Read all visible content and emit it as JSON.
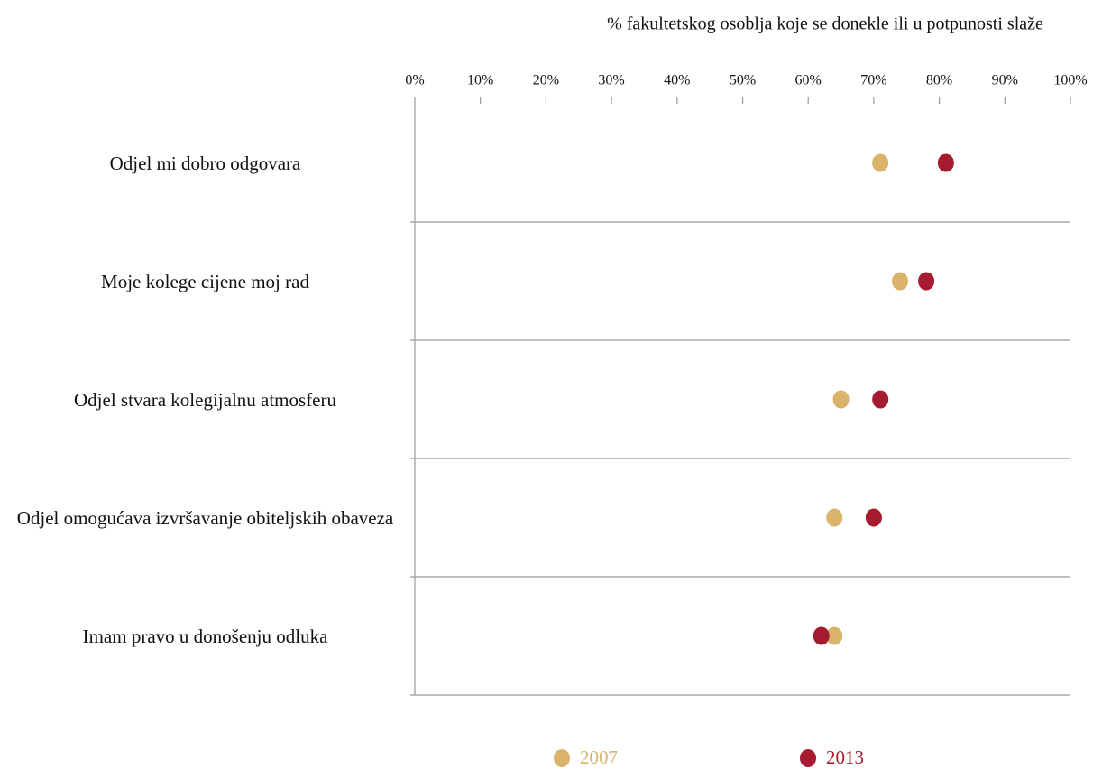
{
  "chart_data": {
    "type": "dot",
    "title": "% fakultetskog osoblja koje se donekle ili u potpunosti slaže",
    "categories": [
      "Odjel mi dobro odgovara",
      "Moje kolege cijene moj rad",
      "Odjel stvara kolegijalnu atmosferu",
      "Odjel omogućava izvršavanje obiteljskih obaveza",
      "Imam pravo u donošenju odluka"
    ],
    "series": [
      {
        "name": "2007",
        "color": "#d9b46a",
        "values": [
          71,
          74,
          65,
          64,
          64
        ]
      },
      {
        "name": "2013",
        "color": "#a51c30",
        "values": [
          81,
          78,
          71,
          70,
          62
        ]
      }
    ],
    "xlim": [
      0,
      100
    ],
    "xticks": [
      {
        "value": 0,
        "label": "0%"
      },
      {
        "value": 10,
        "label": "10%"
      },
      {
        "value": 20,
        "label": "20%"
      },
      {
        "value": 30,
        "label": "30%"
      },
      {
        "value": 40,
        "label": "40%"
      },
      {
        "value": 50,
        "label": "50%"
      },
      {
        "value": 60,
        "label": "60%"
      },
      {
        "value": 70,
        "label": "70%"
      },
      {
        "value": 80,
        "label": "80%"
      },
      {
        "value": 90,
        "label": "90%"
      },
      {
        "value": 100,
        "label": "100%"
      }
    ],
    "legend": "bottom"
  }
}
